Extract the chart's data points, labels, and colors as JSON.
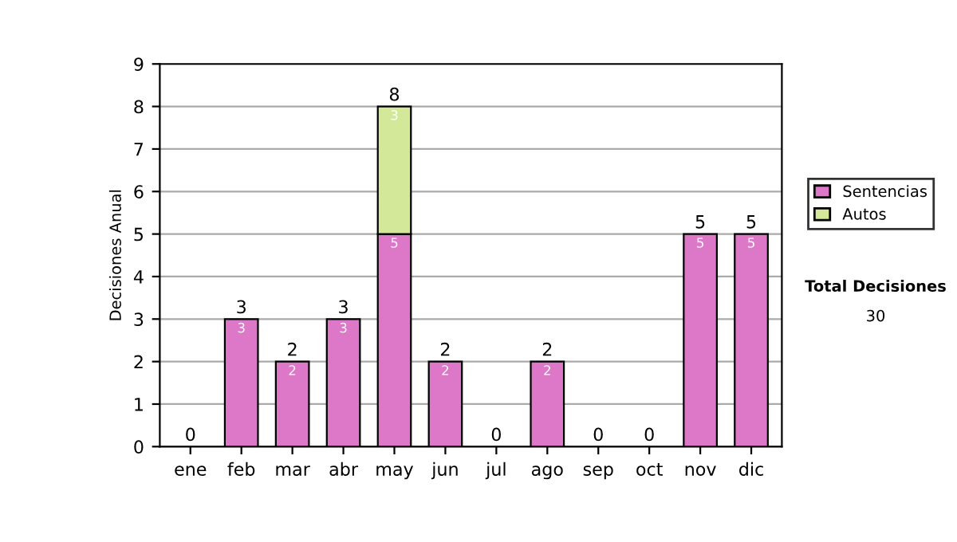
{
  "chart_data": {
    "type": "bar",
    "stacked": true,
    "ylabel": "Decisiones Anual",
    "categories": [
      "ene",
      "feb",
      "mar",
      "abr",
      "may",
      "jun",
      "jul",
      "ago",
      "sep",
      "oct",
      "nov",
      "dic"
    ],
    "series": [
      {
        "name": "Sentencias",
        "color": "#dd77c8",
        "values": [
          0,
          3,
          2,
          3,
          5,
          2,
          0,
          2,
          0,
          0,
          5,
          5
        ],
        "value_labels": [
          null,
          "3",
          "2",
          "3",
          "5",
          "2",
          null,
          "2",
          null,
          null,
          "5",
          "5"
        ]
      },
      {
        "name": "Autos",
        "color": "#d4e89a",
        "values": [
          0,
          0,
          0,
          0,
          3,
          0,
          0,
          0,
          0,
          0,
          0,
          0
        ],
        "value_labels": [
          null,
          null,
          null,
          null,
          "3",
          null,
          null,
          null,
          null,
          null,
          null,
          null
        ]
      }
    ],
    "totals": [
      "0",
      "3",
      "2",
      "3",
      "8",
      "2",
      "0",
      "2",
      "0",
      "0",
      "5",
      "5"
    ],
    "ylim": [
      0,
      9
    ],
    "yticks": [
      0,
      1,
      2,
      3,
      4,
      5,
      6,
      7,
      8,
      9
    ],
    "grid": "y",
    "legend": "right",
    "annotations": [
      "Total Decisiones",
      "30"
    ]
  }
}
